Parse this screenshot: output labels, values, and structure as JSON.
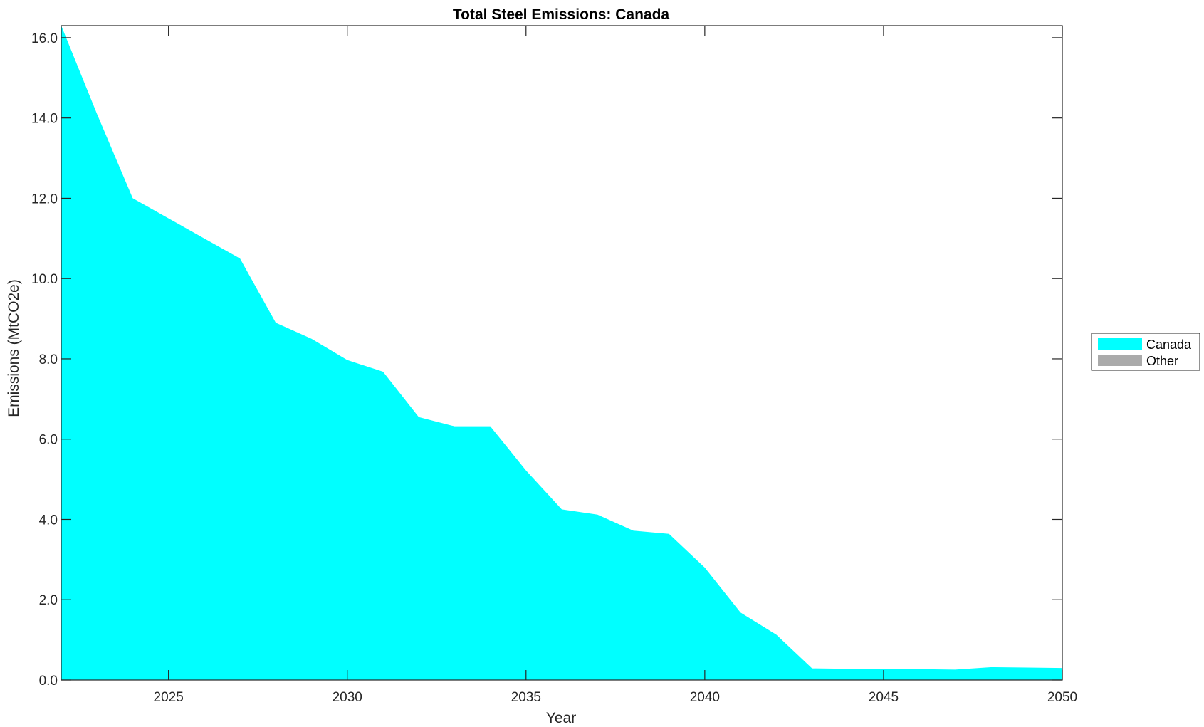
{
  "chart_data": {
    "type": "area",
    "title": "Total Steel Emissions: Canada",
    "xlabel": "Year",
    "ylabel": "Emissions (MtCO2e)",
    "xlim": [
      2022,
      2050
    ],
    "ylim": [
      0,
      16.3
    ],
    "xticks": [
      2025,
      2030,
      2035,
      2040,
      2045,
      2050
    ],
    "xtick_labels": [
      "2025",
      "2030",
      "2035",
      "2040",
      "2045",
      "2050"
    ],
    "yticks": [
      0,
      2,
      4,
      6,
      8,
      10,
      12,
      14,
      16
    ],
    "ytick_labels": [
      "0.0",
      "2.0",
      "4.0",
      "6.0",
      "8.0",
      "10.0",
      "12.0",
      "14.0",
      "16.0"
    ],
    "grid": false,
    "legend_position": "right",
    "x": [
      2022,
      2023,
      2024,
      2025,
      2026,
      2027,
      2028,
      2029,
      2030,
      2031,
      2032,
      2033,
      2034,
      2035,
      2036,
      2037,
      2038,
      2039,
      2040,
      2041,
      2042,
      2043,
      2044,
      2045,
      2046,
      2047,
      2048,
      2049,
      2050
    ],
    "series": [
      {
        "name": "Canada",
        "color": "#00ffff",
        "values": [
          16.3,
          14.1,
          12.0,
          11.5,
          11.0,
          10.5,
          8.9,
          8.5,
          7.97,
          7.68,
          6.55,
          6.32,
          6.32,
          5.22,
          4.25,
          4.12,
          3.72,
          3.64,
          2.8,
          1.68,
          1.13,
          0.29,
          0.28,
          0.27,
          0.27,
          0.26,
          0.32,
          0.31,
          0.3
        ]
      },
      {
        "name": "Other",
        "color": "#aaaaaa",
        "values": [
          0,
          0,
          0,
          0,
          0,
          0,
          0,
          0,
          0,
          0,
          0,
          0,
          0,
          0,
          0,
          0,
          0,
          0,
          0,
          0,
          0,
          0,
          0,
          0,
          0,
          0,
          0,
          0,
          0
        ]
      }
    ]
  }
}
